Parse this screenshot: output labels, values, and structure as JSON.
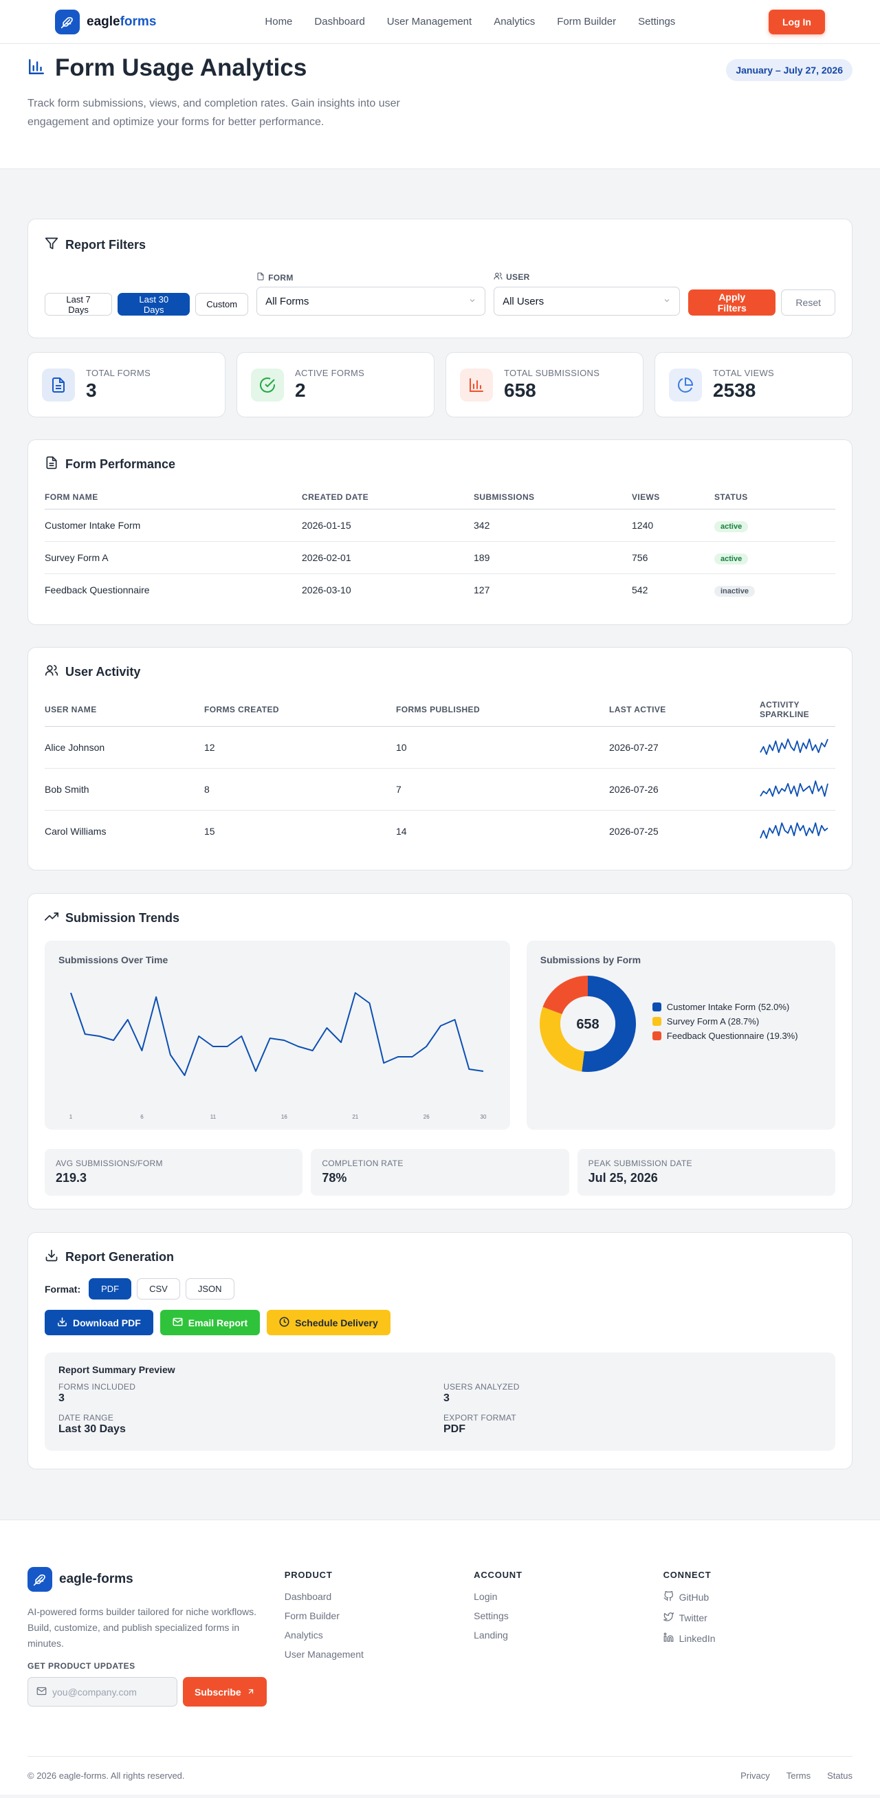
{
  "nav": {
    "brand_a": "eagle",
    "brand_b": "forms",
    "links": [
      "Home",
      "Dashboard",
      "User Management",
      "Analytics",
      "Form Builder",
      "Settings"
    ],
    "login_label": "Log In"
  },
  "hero": {
    "title": "Form Usage Analytics",
    "description": "Track form submissions, views, and completion rates. Gain insights into user engagement and optimize your forms for better performance.",
    "date_range": "January – July 27, 2026"
  },
  "filters": {
    "title": "Report Filters",
    "ranges": [
      "Last 7 Days",
      "Last 30 Days",
      "Custom"
    ],
    "active_range": "Last 30 Days",
    "form_label": "FORM",
    "form_value": "All Forms",
    "user_label": "USER",
    "user_value": "All Users",
    "apply_label": "Apply Filters",
    "reset_label": "Reset"
  },
  "stats": [
    {
      "label": "TOTAL FORMS",
      "value": "3",
      "icon": "document-icon",
      "color": "#1658c7",
      "bg": "#e3ebf8"
    },
    {
      "label": "ACTIVE FORMS",
      "value": "2",
      "icon": "check-circle-icon",
      "color": "#22a845",
      "bg": "#e3f6e8"
    },
    {
      "label": "TOTAL SUBMISSIONS",
      "value": "658",
      "icon": "bar-chart-icon",
      "color": "#f0512c",
      "bg": "#fdece7"
    },
    {
      "label": "TOTAL VIEWS",
      "value": "2538",
      "icon": "pie-chart-icon",
      "color": "#3b7be0",
      "bg": "#e8effb"
    }
  ],
  "performance": {
    "title": "Form Performance",
    "headers": [
      "FORM NAME",
      "CREATED DATE",
      "SUBMISSIONS",
      "VIEWS",
      "STATUS"
    ],
    "rows": [
      {
        "name": "Customer Intake Form",
        "created": "2026-01-15",
        "submissions": "342",
        "views": "1240",
        "status": "active"
      },
      {
        "name": "Survey Form A",
        "created": "2026-02-01",
        "submissions": "189",
        "views": "756",
        "status": "active"
      },
      {
        "name": "Feedback Questionnaire",
        "created": "2026-03-10",
        "submissions": "127",
        "views": "542",
        "status": "inactive"
      }
    ]
  },
  "users": {
    "title": "User Activity",
    "headers": [
      "USER NAME",
      "FORMS CREATED",
      "FORMS PUBLISHED",
      "LAST ACTIVE",
      "ACTIVITY SPARKLINE"
    ],
    "rows": [
      {
        "name": "Alice Johnson",
        "created": "12",
        "published": "10",
        "last_active": "2026-07-27",
        "spark": [
          3,
          6,
          2,
          7,
          4,
          9,
          3,
          8,
          5,
          10,
          6,
          4,
          9,
          3,
          8,
          5,
          10,
          4,
          7,
          3,
          8,
          6,
          10
        ]
      },
      {
        "name": "Bob Smith",
        "created": "8",
        "published": "7",
        "last_active": "2026-07-26",
        "spark": [
          2,
          4,
          3,
          5,
          2,
          6,
          3,
          5,
          4,
          7,
          3,
          6,
          2,
          7,
          4,
          5,
          6,
          3,
          8,
          4,
          6,
          2,
          7
        ]
      },
      {
        "name": "Carol Williams",
        "created": "15",
        "published": "14",
        "last_active": "2026-07-25",
        "spark": [
          3,
          6,
          3,
          7,
          5,
          8,
          4,
          9,
          6,
          5,
          8,
          4,
          9,
          6,
          8,
          4,
          7,
          5,
          9,
          4,
          8,
          6,
          7
        ]
      }
    ]
  },
  "trends": {
    "title": "Submission Trends",
    "line_title": "Submissions Over Time",
    "pie_title": "Submissions by Form",
    "pie_center": "658",
    "kpis": [
      {
        "label": "AVG SUBMISSIONS/FORM",
        "value": "219.3"
      },
      {
        "label": "COMPLETION RATE",
        "value": "78%"
      },
      {
        "label": "PEAK SUBMISSION DATE",
        "value": "Jul 25, 2026"
      }
    ]
  },
  "chart_data": [
    {
      "type": "line",
      "title": "Submissions Over Time",
      "x": [
        1,
        2,
        3,
        4,
        5,
        6,
        7,
        8,
        9,
        10,
        11,
        12,
        13,
        14,
        15,
        16,
        17,
        18,
        19,
        20,
        21,
        22,
        23,
        24,
        25,
        26,
        27,
        28,
        29,
        30
      ],
      "x_ticks": [
        "1",
        "6",
        "11",
        "16",
        "21",
        "26",
        "30"
      ],
      "series": [
        {
          "values": [
            36,
            26,
            25.5,
            24.5,
            29.5,
            22,
            35,
            21,
            16,
            25.5,
            23,
            23,
            25.5,
            17,
            25,
            24.5,
            23,
            22,
            27.5,
            24,
            36,
            33.5,
            19,
            20.5,
            20.5,
            23,
            28,
            29.5,
            17.5,
            17
          ]
        }
      ],
      "ylim": [
        10,
        40
      ],
      "color": "#0b4fb3"
    },
    {
      "type": "pie",
      "title": "Submissions by Form",
      "series": [
        {
          "name": "Customer Intake Form (52.0%)",
          "value": 52.0,
          "color": "#0b4fb3"
        },
        {
          "name": "Survey Form A (28.7%)",
          "value": 28.7,
          "color": "#fcc419"
        },
        {
          "name": "Feedback Questionnaire (19.3%)",
          "value": 19.3,
          "color": "#f0512c"
        }
      ]
    }
  ],
  "report": {
    "title": "Report Generation",
    "format_label": "Format:",
    "formats": [
      "PDF",
      "CSV",
      "JSON"
    ],
    "active_format": "PDF",
    "download_label": "Download PDF",
    "email_label": "Email Report",
    "schedule_label": "Schedule Delivery",
    "summary_title": "Report Summary Preview",
    "summary": [
      {
        "label": "FORMS INCLUDED",
        "value": "3"
      },
      {
        "label": "USERS ANALYZED",
        "value": "3"
      },
      {
        "label": "DATE RANGE",
        "value": "Last 30 Days"
      },
      {
        "label": "EXPORT FORMAT",
        "value": "PDF"
      }
    ]
  },
  "footer": {
    "brand": "eagle-forms",
    "description": "AI-powered forms builder tailored for niche workflows. Build, customize, and publish specialized forms in minutes.",
    "updates_label": "GET PRODUCT UPDATES",
    "email_placeholder": "you@company.com",
    "subscribe_label": "Subscribe",
    "columns": [
      {
        "title": "PRODUCT",
        "links": [
          "Dashboard",
          "Form Builder",
          "Analytics",
          "User Management"
        ]
      },
      {
        "title": "ACCOUNT",
        "links": [
          "Login",
          "Settings",
          "Landing"
        ]
      },
      {
        "title": "CONNECT",
        "links": [
          "GitHub",
          "Twitter",
          "LinkedIn"
        ]
      }
    ],
    "copyright": "© 2026 eagle-forms. All rights reserved.",
    "bottom_links": [
      "Privacy",
      "Terms",
      "Status"
    ]
  }
}
